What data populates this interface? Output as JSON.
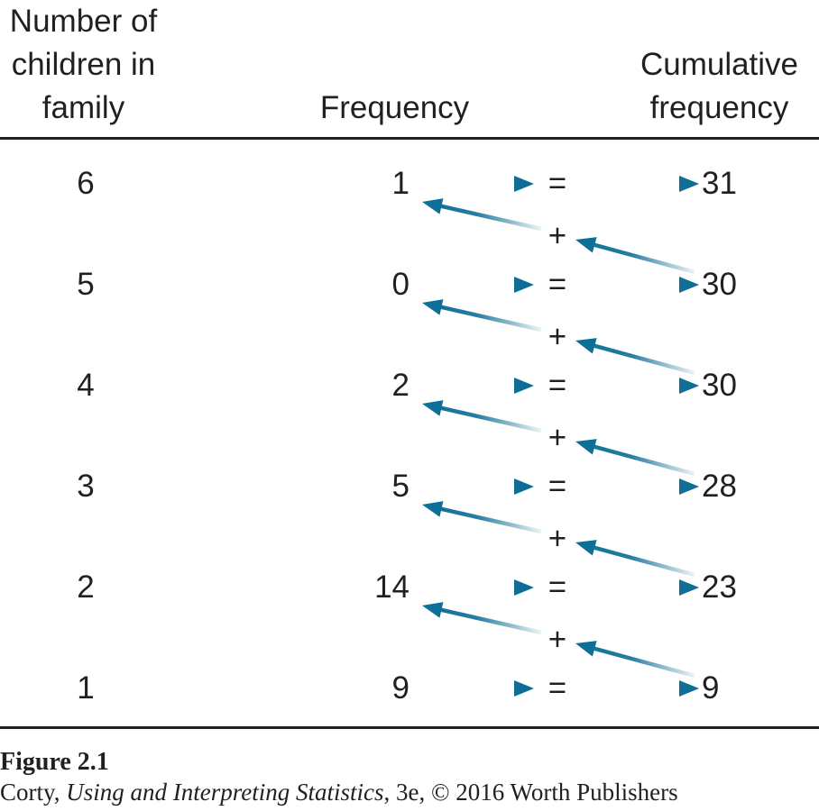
{
  "headers": {
    "children": [
      "Number of",
      "children in",
      "family"
    ],
    "frequency": [
      "Frequency"
    ],
    "cumulative": [
      "Cumulative",
      "frequency"
    ]
  },
  "rows": [
    {
      "children": "6",
      "frequency": "1",
      "cumulative": "31"
    },
    {
      "children": "5",
      "frequency": "0",
      "cumulative": "30"
    },
    {
      "children": "4",
      "frequency": "2",
      "cumulative": "30"
    },
    {
      "children": "3",
      "frequency": "5",
      "cumulative": "28"
    },
    {
      "children": "2",
      "frequency": "14",
      "cumulative": "23"
    },
    {
      "children": "1",
      "frequency": "9",
      "cumulative": "9"
    }
  ],
  "symbols": {
    "equals": "=",
    "plus": "+"
  },
  "caption": {
    "title": "Figure 2.1",
    "author": "Corty, ",
    "book": "Using and Interpreting Statistics",
    "rest": ", 3e, © 2016 Worth Publishers"
  },
  "colors": {
    "arrow": "#0d6e96",
    "text": "#231f20"
  }
}
